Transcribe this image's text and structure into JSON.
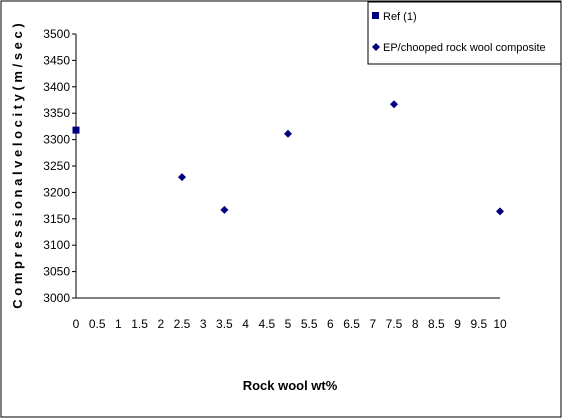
{
  "chart_data": {
    "type": "scatter",
    "xlabel": "Rock wool wt%",
    "ylabel": "C o m p r e s s i o n a l  v e l o c i t y ( m / s e c )",
    "xlim": [
      0,
      10
    ],
    "ylim": [
      3000,
      3500
    ],
    "grid": false,
    "legend_position": "top-right",
    "x_ticks": [
      "0",
      "0.5",
      "1",
      "1.5",
      "2",
      "2.5",
      "3",
      "3.5",
      "4",
      "4.5",
      "5",
      "5.5",
      "6",
      "6.5",
      "7",
      "7.5",
      "8",
      "8.5",
      "9",
      "9.5",
      "10"
    ],
    "y_ticks": [
      "3000",
      "3050",
      "3100",
      "3150",
      "3200",
      "3250",
      "3300",
      "3350",
      "3400",
      "3450",
      "3500"
    ],
    "series": [
      {
        "name": "Ref (1)",
        "marker": "square",
        "color": "#000080",
        "points": [
          {
            "x": 0,
            "y": 3318
          }
        ]
      },
      {
        "name": "EP/chooped rock wool composite",
        "marker": "diamond",
        "color": "#000080",
        "points": [
          {
            "x": 2.5,
            "y": 3229
          },
          {
            "x": 3.5,
            "y": 3167
          },
          {
            "x": 5,
            "y": 3311
          },
          {
            "x": 7.5,
            "y": 3367
          },
          {
            "x": 10,
            "y": 3164
          }
        ]
      }
    ]
  }
}
